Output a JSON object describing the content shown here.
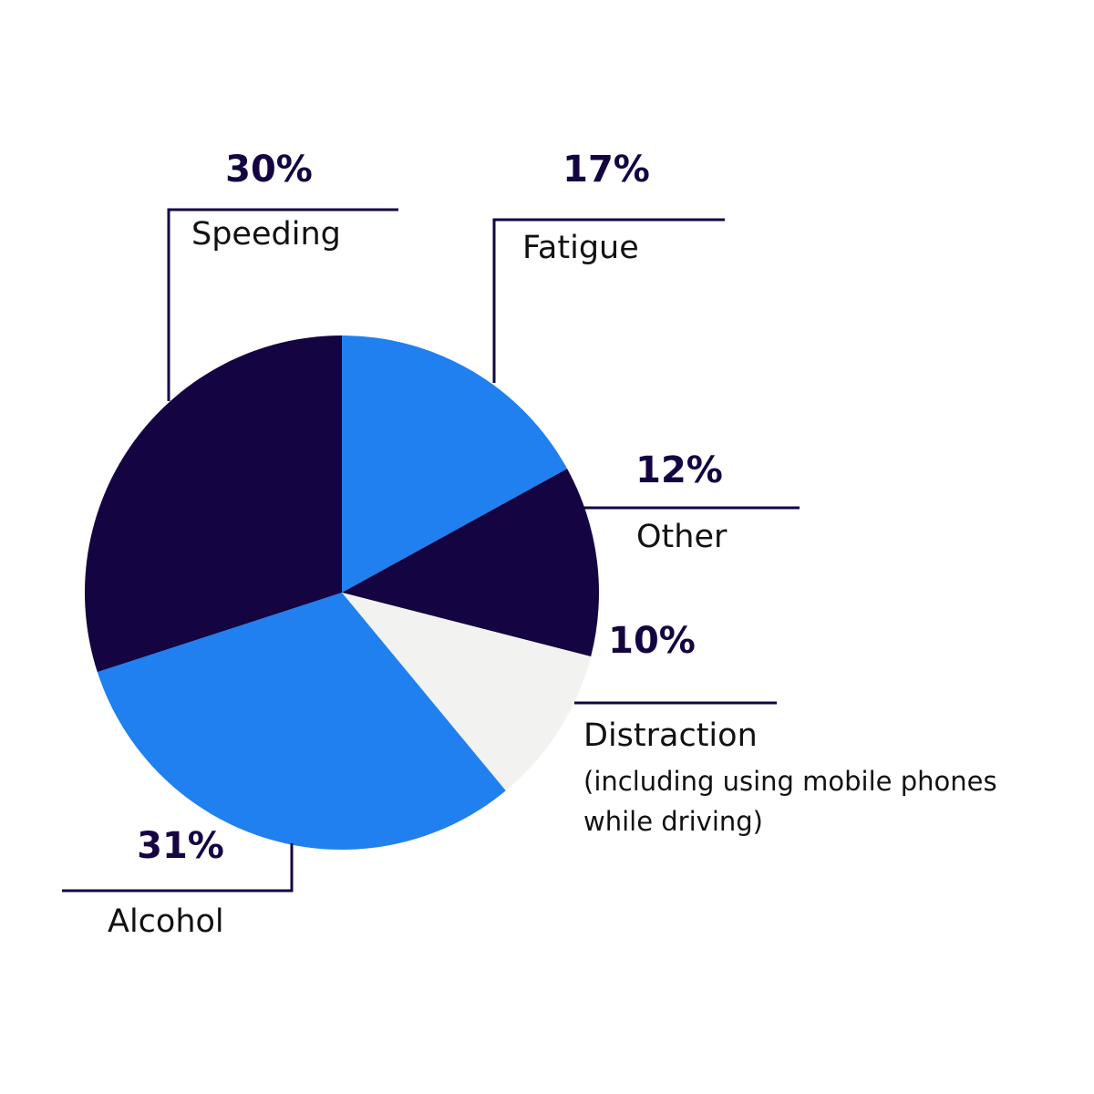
{
  "chart_data": {
    "type": "pie",
    "categories": [
      "Fatigue",
      "Other",
      "Distraction",
      "Alcohol",
      "Speeding"
    ],
    "values": [
      17,
      12,
      10,
      31,
      30
    ],
    "value_labels": [
      "17%",
      "12%",
      "10%",
      "31%",
      "30%"
    ],
    "colors": [
      "#2080f0",
      "#140442",
      "#f2f3f0",
      "#2080f0",
      "#140442"
    ],
    "annotation": "(including using mobile phones while driving)"
  }
}
